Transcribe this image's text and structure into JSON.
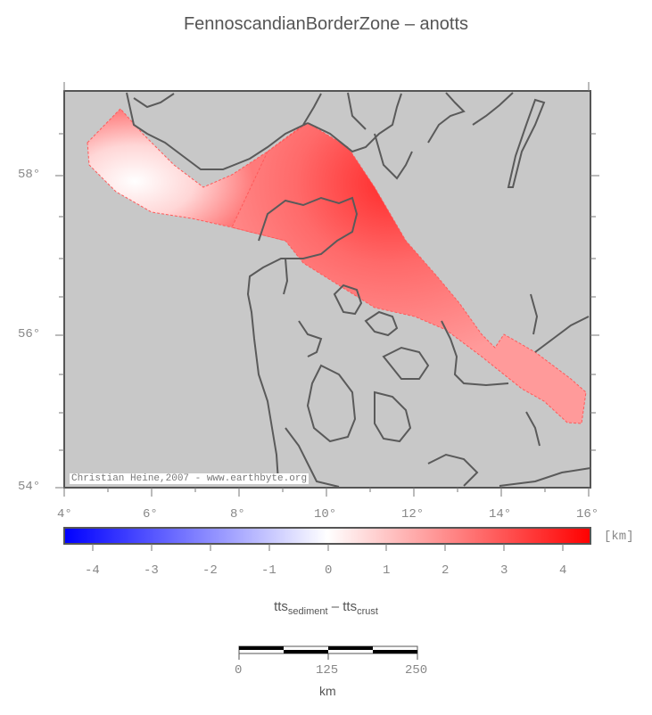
{
  "title": "FennoscandianBorderZone – anotts",
  "credit": "Christian Heine,2007 - www.earthbyte.org",
  "lat_labels": [
    "58°",
    "56°",
    "54°"
  ],
  "lon_labels": [
    "4°",
    "6°",
    "8°",
    "10°",
    "12°",
    "14°",
    "16°"
  ],
  "colorbar": {
    "unit": "[km]",
    "ticks": [
      "-4",
      "-3",
      "-2",
      "-1",
      "0",
      "1",
      "2",
      "3",
      "4"
    ],
    "low_color": "#0000ff",
    "high_color": "#ff0000"
  },
  "expression": {
    "a": "tts",
    "a_sub": "sediment",
    "op": " – ",
    "b": "tts",
    "b_sub": "crust"
  },
  "scalebar": {
    "ticks": [
      "0",
      "125",
      "250"
    ],
    "unit": "km"
  },
  "colors": {
    "land": "#c8c8c8",
    "coast": "#555555",
    "anomaly_high": "#ff3030",
    "anomaly_low": "#ffffff"
  }
}
